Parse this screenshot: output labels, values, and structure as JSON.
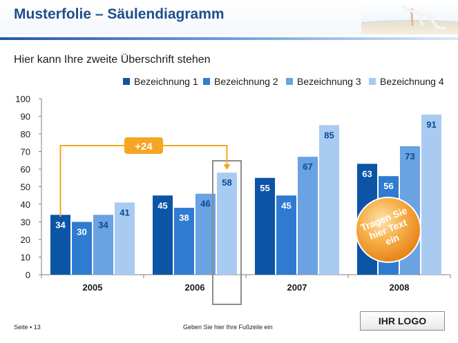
{
  "slide": {
    "title": "Musterfolie – Säulendiagramm",
    "subtitle": "Hier kann Ihre zweite Überschrift stehen",
    "page_label": "Seite ▪ 13",
    "footer_text": "Geben Sie hier Ihre Fußzeile ein",
    "logo_text": "IHR LOGO",
    "callout_label": "+24",
    "badge_text": [
      "Tragen Sie",
      "hier Text",
      "ein"
    ]
  },
  "colors": {
    "title": "#1f4e8c",
    "series": [
      "#0b54a6",
      "#2f7bd1",
      "#6aa2e2",
      "#a9cbf1"
    ],
    "callout": "#f5a623",
    "badge": "#f0961e",
    "highlight_box": "#8c8c8c"
  },
  "icons": [
    "beach-yoga-photo",
    "annotation-arrow"
  ],
  "chart_data": {
    "type": "bar",
    "categories": [
      "2005",
      "2006",
      "2007",
      "2008"
    ],
    "series": [
      {
        "name": "Bezeichnung 1",
        "values": [
          34,
          45,
          55,
          63
        ]
      },
      {
        "name": "Bezeichnung 2",
        "values": [
          30,
          38,
          45,
          56
        ]
      },
      {
        "name": "Bezeichnung 3",
        "values": [
          34,
          46,
          67,
          73
        ]
      },
      {
        "name": "Bezeichnung 4",
        "values": [
          41,
          58,
          85,
          91
        ]
      }
    ],
    "ylim": [
      0,
      100
    ],
    "yticks": [
      0,
      10,
      20,
      30,
      40,
      50,
      60,
      70,
      80,
      90,
      100
    ],
    "grid": false,
    "legend_position": "top-right",
    "annotation": {
      "from": {
        "category": "2005",
        "series": "Bezeichnung 1"
      },
      "to": {
        "category": "2006",
        "series": "Bezeichnung 4"
      },
      "label": "+24"
    }
  }
}
